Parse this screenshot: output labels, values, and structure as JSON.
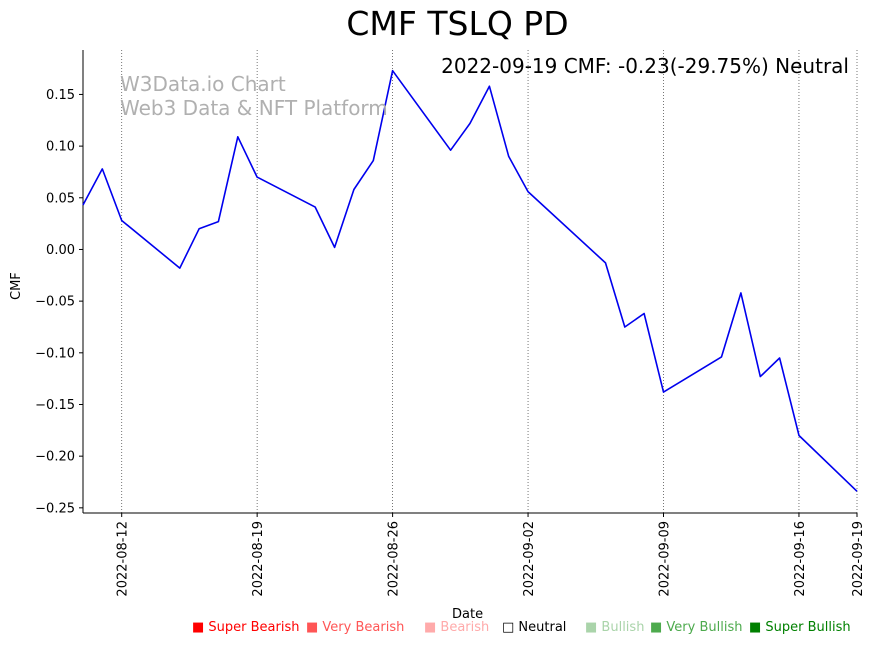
{
  "chart_data": {
    "type": "line",
    "title": "CMF TSLQ PD",
    "xlabel": "Date",
    "ylabel": "CMF",
    "annotation": "2022-09-19 CMF: -0.23(-29.75%) Neutral",
    "watermark": [
      "W3Data.io Chart",
      "Web3 Data & NFT Platform"
    ],
    "series": [
      {
        "name": "CMF",
        "color": "#0000ee",
        "points": [
          {
            "x": "2022-08-10",
            "y": 0.043
          },
          {
            "x": "2022-08-11",
            "y": 0.078
          },
          {
            "x": "2022-08-12",
            "y": 0.028
          },
          {
            "x": "2022-08-15",
            "y": -0.018
          },
          {
            "x": "2022-08-16",
            "y": 0.02
          },
          {
            "x": "2022-08-17",
            "y": 0.027
          },
          {
            "x": "2022-08-18",
            "y": 0.109
          },
          {
            "x": "2022-08-19",
            "y": 0.07
          },
          {
            "x": "2022-08-22",
            "y": 0.041
          },
          {
            "x": "2022-08-23",
            "y": 0.002
          },
          {
            "x": "2022-08-24",
            "y": 0.058
          },
          {
            "x": "2022-08-25",
            "y": 0.086
          },
          {
            "x": "2022-08-26",
            "y": 0.173
          },
          {
            "x": "2022-08-29",
            "y": 0.096
          },
          {
            "x": "2022-08-30",
            "y": 0.122
          },
          {
            "x": "2022-08-31",
            "y": 0.158
          },
          {
            "x": "2022-09-01",
            "y": 0.09
          },
          {
            "x": "2022-09-02",
            "y": 0.056
          },
          {
            "x": "2022-09-06",
            "y": -0.013
          },
          {
            "x": "2022-09-07",
            "y": -0.075
          },
          {
            "x": "2022-09-08",
            "y": -0.062
          },
          {
            "x": "2022-09-09",
            "y": -0.138
          },
          {
            "x": "2022-09-12",
            "y": -0.104
          },
          {
            "x": "2022-09-13",
            "y": -0.042
          },
          {
            "x": "2022-09-14",
            "y": -0.123
          },
          {
            "x": "2022-09-15",
            "y": -0.105
          },
          {
            "x": "2022-09-16",
            "y": -0.18
          },
          {
            "x": "2022-09-19",
            "y": -0.234
          }
        ]
      }
    ],
    "x_range": [
      "2022-08-10",
      "2022-09-19"
    ],
    "ylim": [
      -0.255,
      0.193
    ],
    "yticks": [
      -0.25,
      -0.2,
      -0.15,
      -0.1,
      -0.05,
      0.0,
      0.05,
      0.1,
      0.15
    ],
    "ytick_labels": [
      "−0.25",
      "−0.20",
      "−0.15",
      "−0.10",
      "−0.05",
      "0.00",
      "0.05",
      "0.10",
      "0.15"
    ],
    "xticks": [
      "2022-08-12",
      "2022-08-19",
      "2022-08-26",
      "2022-09-02",
      "2022-09-09",
      "2022-09-16",
      "2022-09-19"
    ],
    "vertical_gridlines": true,
    "legend": [
      {
        "label": "Super Bearish",
        "color": "#ff0000"
      },
      {
        "label": "Very Bearish",
        "color": "#ff5555"
      },
      {
        "label": "Bearish",
        "color": "#ffaaaa"
      },
      {
        "label": "Neutral",
        "color": "#000000"
      },
      {
        "label": "Bullish",
        "color": "#aad4aa"
      },
      {
        "label": "Very Bullish",
        "color": "#4daa4d"
      },
      {
        "label": "Super Bullish",
        "color": "#008000"
      }
    ],
    "legend_symbols": [
      "■",
      "■",
      "■",
      "□",
      "■",
      "■",
      "■"
    ]
  }
}
